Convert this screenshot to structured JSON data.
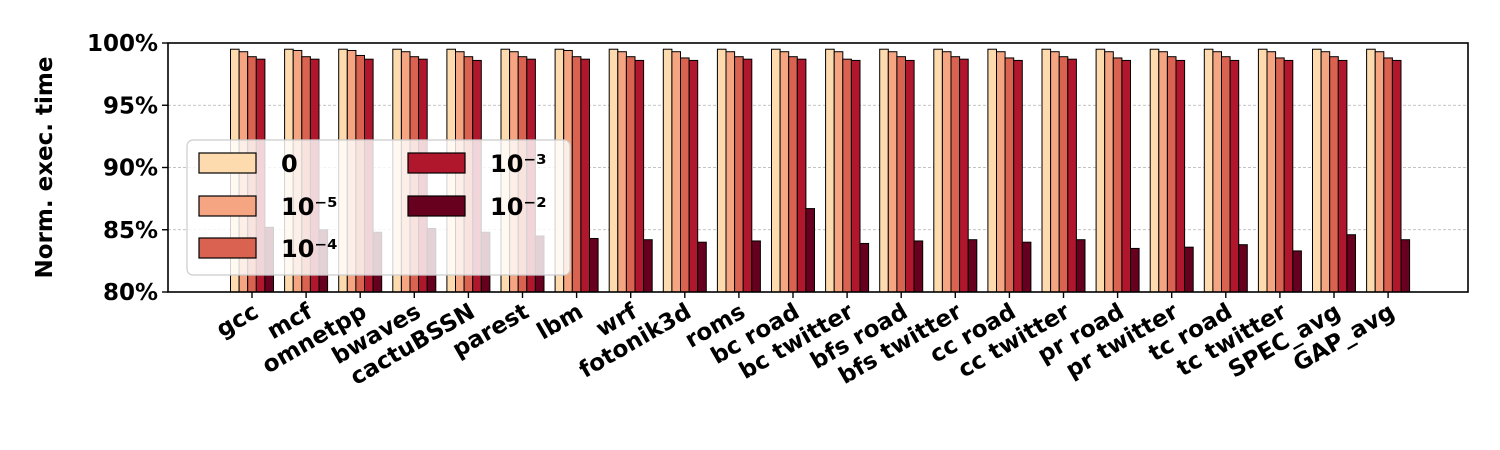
{
  "chart_data": {
    "type": "bar",
    "title": "",
    "xlabel": "",
    "ylabel": "Norm. exec. time",
    "ylim": [
      80,
      100
    ],
    "yticks": [
      "80%",
      "85%",
      "90%",
      "95%",
      "100%"
    ],
    "grid": "horizontal dashed",
    "legend_position": "left, two columns",
    "categories": [
      "gcc",
      "mcf",
      "omnetpp",
      "bwaves",
      "cactuBSSN",
      "parest",
      "lbm",
      "wrf",
      "fotonik3d",
      "roms",
      "bc road",
      "bc twitter",
      "bfs road",
      "bfs twitter",
      "cc road",
      "cc twitter",
      "pr road",
      "pr twitter",
      "tc road",
      "tc twitter",
      "SPEC_avg",
      "GAP_avg"
    ],
    "series": [
      {
        "name": "0",
        "color": "#fddbaf",
        "values": [
          99.5,
          99.5,
          99.5,
          99.5,
          99.5,
          99.5,
          99.5,
          99.5,
          99.5,
          99.5,
          99.5,
          99.5,
          99.5,
          99.5,
          99.5,
          99.5,
          99.5,
          99.5,
          99.5,
          99.5,
          99.5,
          99.5
        ]
      },
      {
        "name": "10⁻⁵",
        "color": "#f5a582",
        "values": [
          99.3,
          99.4,
          99.4,
          99.3,
          99.3,
          99.3,
          99.4,
          99.3,
          99.3,
          99.3,
          99.3,
          99.3,
          99.3,
          99.3,
          99.3,
          99.3,
          99.3,
          99.3,
          99.3,
          99.3,
          99.3,
          99.3
        ]
      },
      {
        "name": "10⁻⁴",
        "color": "#d96350",
        "values": [
          98.9,
          98.9,
          99.0,
          98.9,
          98.9,
          98.9,
          98.9,
          98.9,
          98.8,
          98.9,
          98.9,
          98.7,
          98.9,
          98.9,
          98.8,
          98.9,
          98.8,
          98.9,
          98.9,
          98.8,
          98.9,
          98.8
        ]
      },
      {
        "name": "10⁻³",
        "color": "#b0172d",
        "values": [
          98.7,
          98.7,
          98.7,
          98.7,
          98.6,
          98.7,
          98.7,
          98.6,
          98.6,
          98.7,
          98.7,
          98.6,
          98.6,
          98.7,
          98.6,
          98.7,
          98.6,
          98.6,
          98.6,
          98.6,
          98.6,
          98.6
        ]
      },
      {
        "name": "10⁻²",
        "color": "#67001f",
        "values": [
          85.2,
          85.0,
          84.8,
          85.1,
          84.8,
          84.5,
          84.3,
          84.2,
          84.0,
          84.1,
          86.7,
          83.9,
          84.1,
          84.2,
          84.0,
          84.2,
          83.5,
          83.6,
          83.8,
          83.3,
          84.6,
          84.2
        ]
      }
    ]
  }
}
